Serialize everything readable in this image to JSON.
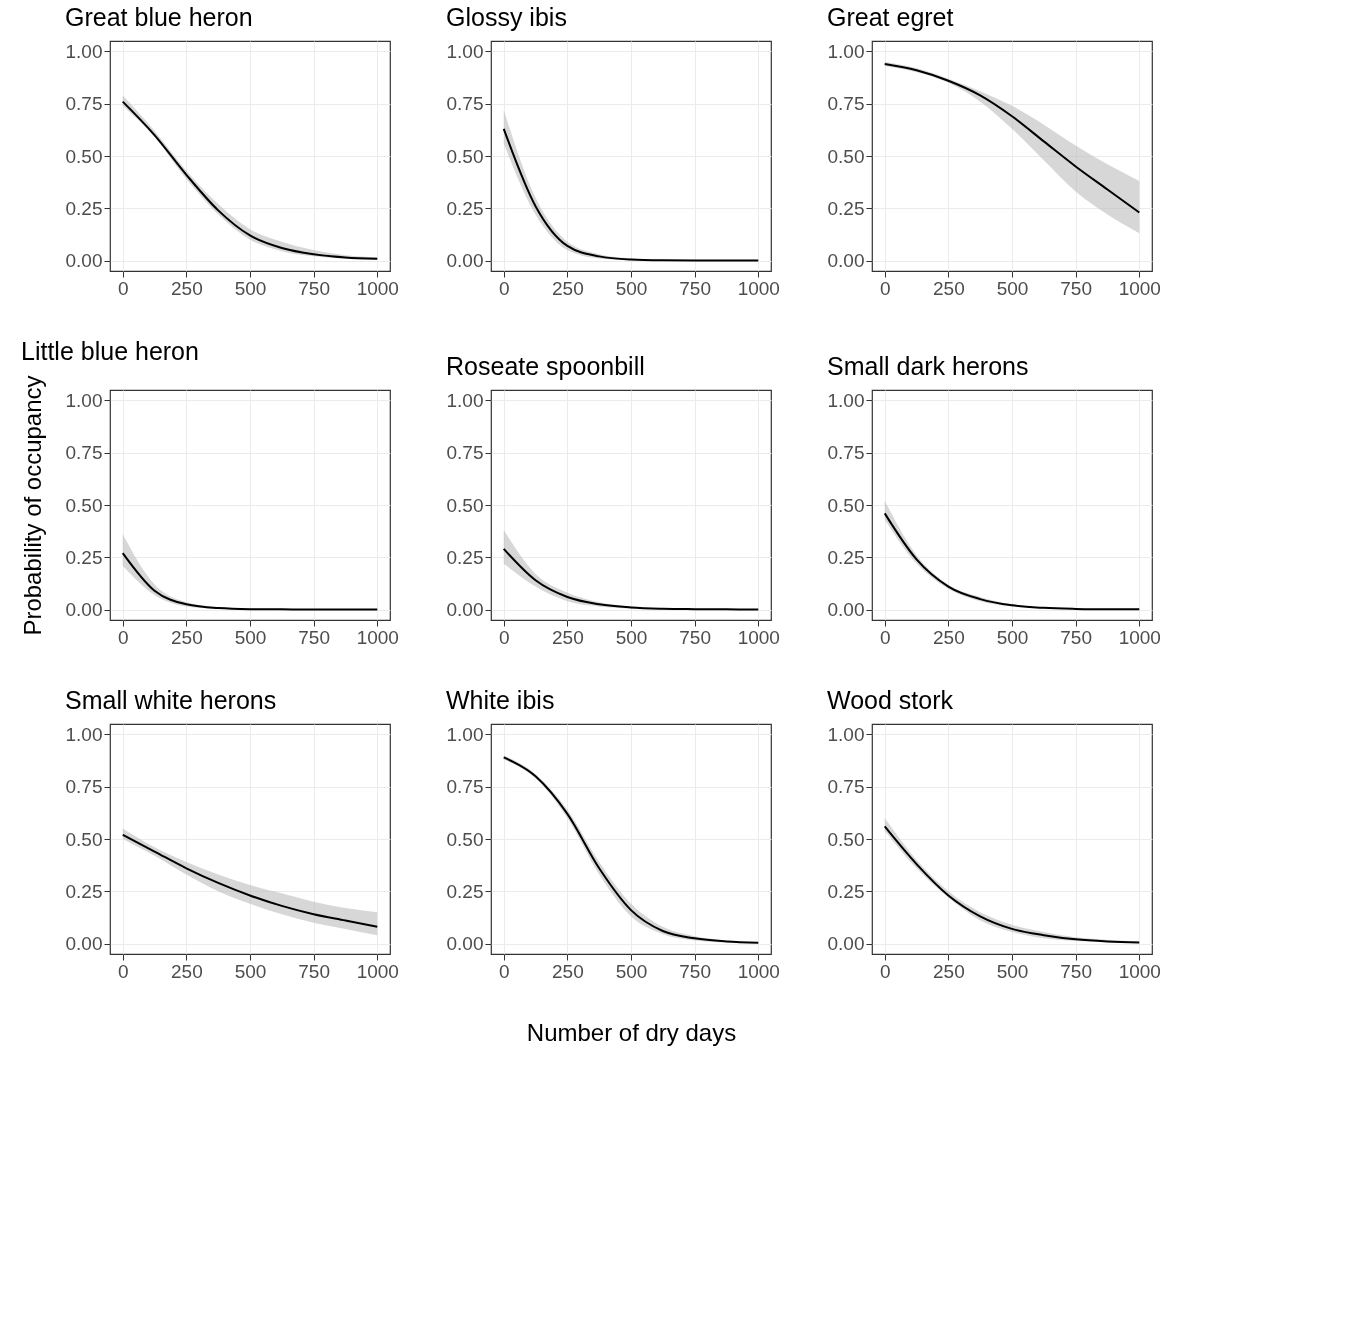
{
  "chart_data": [
    {
      "type": "line",
      "title": "Great blue heron",
      "x": [
        0,
        125,
        250,
        375,
        500,
        625,
        750,
        875,
        1000
      ],
      "xlim": [
        -50,
        1050
      ],
      "xticks": [
        0,
        250,
        500,
        750,
        1000
      ],
      "ylim": [
        -0.05,
        1.05
      ],
      "yticks": [
        {
          "value": 0,
          "label": "0.00"
        },
        {
          "value": 0.25,
          "label": "0.25"
        },
        {
          "value": 0.5,
          "label": "0.50"
        },
        {
          "value": 0.75,
          "label": "0.75"
        },
        {
          "value": 1,
          "label": "1.00"
        }
      ],
      "grid": true,
      "series": [
        {
          "color": "#000000",
          "values": [
            0.76,
            0.6,
            0.41,
            0.24,
            0.12,
            0.06,
            0.03,
            0.015,
            0.008
          ],
          "lower": [
            0.74,
            0.59,
            0.39,
            0.22,
            0.1,
            0.045,
            0.02,
            0.008,
            0.003
          ],
          "upper": [
            0.79,
            0.62,
            0.43,
            0.27,
            0.15,
            0.09,
            0.05,
            0.025,
            0.015
          ]
        }
      ]
    },
    {
      "type": "line",
      "title": "Glossy ibis",
      "x": [
        0,
        125,
        250,
        375,
        500,
        625,
        750,
        875,
        1000
      ],
      "xlim": [
        -50,
        1050
      ],
      "xticks": [
        0,
        250,
        500,
        750,
        1000
      ],
      "ylim": [
        -0.05,
        1.05
      ],
      "yticks": [
        {
          "value": 0,
          "label": "0.00"
        },
        {
          "value": 0.25,
          "label": "0.25"
        },
        {
          "value": 0.5,
          "label": "0.50"
        },
        {
          "value": 0.75,
          "label": "0.75"
        },
        {
          "value": 1,
          "label": "1.00"
        }
      ],
      "grid": true,
      "series": [
        {
          "color": "#000000",
          "values": [
            0.63,
            0.26,
            0.07,
            0.02,
            0.005,
            0.001,
            0,
            0,
            0
          ],
          "lower": [
            0.56,
            0.22,
            0.05,
            0.01,
            0.002,
            0,
            0,
            0,
            0
          ],
          "upper": [
            0.72,
            0.3,
            0.09,
            0.03,
            0.01,
            0.004,
            0.002,
            0.001,
            0.001
          ]
        }
      ]
    },
    {
      "type": "line",
      "title": "Great egret",
      "x": [
        0,
        125,
        250,
        375,
        500,
        625,
        750,
        875,
        1000
      ],
      "xlim": [
        -50,
        1050
      ],
      "xticks": [
        0,
        250,
        500,
        750,
        1000
      ],
      "ylim": [
        -0.05,
        1.05
      ],
      "yticks": [
        {
          "value": 0,
          "label": "0.00"
        },
        {
          "value": 0.25,
          "label": "0.25"
        },
        {
          "value": 0.5,
          "label": "0.50"
        },
        {
          "value": 0.75,
          "label": "0.75"
        },
        {
          "value": 1,
          "label": "1.00"
        }
      ],
      "grid": true,
      "series": [
        {
          "color": "#000000",
          "values": [
            0.94,
            0.91,
            0.86,
            0.79,
            0.69,
            0.57,
            0.45,
            0.34,
            0.23
          ],
          "lower": [
            0.93,
            0.9,
            0.85,
            0.76,
            0.63,
            0.48,
            0.33,
            0.22,
            0.13
          ],
          "upper": [
            0.95,
            0.92,
            0.87,
            0.81,
            0.74,
            0.65,
            0.55,
            0.46,
            0.38
          ]
        }
      ]
    },
    {
      "type": "line",
      "title": "Little blue heron",
      "ylabel": "Probability of occupancy",
      "x": [
        0,
        125,
        250,
        375,
        500,
        625,
        750,
        875,
        1000
      ],
      "xlim": [
        -50,
        1050
      ],
      "xticks": [
        0,
        250,
        500,
        750,
        1000
      ],
      "ylim": [
        -0.05,
        1.05
      ],
      "yticks": [
        {
          "value": 0,
          "label": "0.00"
        },
        {
          "value": 0.25,
          "label": "0.25"
        },
        {
          "value": 0.5,
          "label": "0.50"
        },
        {
          "value": 0.75,
          "label": "0.75"
        },
        {
          "value": 1,
          "label": "1.00"
        }
      ],
      "grid": true,
      "series": [
        {
          "color": "#000000",
          "values": [
            0.27,
            0.09,
            0.025,
            0.007,
            0.002,
            0.001,
            0,
            0,
            0
          ],
          "lower": [
            0.21,
            0.07,
            0.015,
            0.004,
            0.001,
            0,
            0,
            0,
            0
          ],
          "upper": [
            0.36,
            0.12,
            0.035,
            0.012,
            0.005,
            0.003,
            0.002,
            0.002,
            0.002
          ]
        }
      ]
    },
    {
      "type": "line",
      "title": "Roseate spoonbill",
      "x": [
        0,
        125,
        250,
        375,
        500,
        625,
        750,
        875,
        1000
      ],
      "xlim": [
        -50,
        1050
      ],
      "xticks": [
        0,
        250,
        500,
        750,
        1000
      ],
      "ylim": [
        -0.05,
        1.05
      ],
      "yticks": [
        {
          "value": 0,
          "label": "0.00"
        },
        {
          "value": 0.25,
          "label": "0.25"
        },
        {
          "value": 0.5,
          "label": "0.50"
        },
        {
          "value": 0.75,
          "label": "0.75"
        },
        {
          "value": 1,
          "label": "1.00"
        }
      ],
      "grid": true,
      "series": [
        {
          "color": "#000000",
          "values": [
            0.29,
            0.14,
            0.06,
            0.025,
            0.01,
            0.004,
            0.002,
            0.001,
            0
          ],
          "lower": [
            0.22,
            0.11,
            0.04,
            0.015,
            0.005,
            0.002,
            0.001,
            0,
            0
          ],
          "upper": [
            0.38,
            0.17,
            0.08,
            0.035,
            0.015,
            0.007,
            0.004,
            0.002,
            0.001
          ]
        }
      ]
    },
    {
      "type": "line",
      "title": "Small dark herons",
      "x": [
        0,
        125,
        250,
        375,
        500,
        625,
        750,
        875,
        1000
      ],
      "xlim": [
        -50,
        1050
      ],
      "xticks": [
        0,
        250,
        500,
        750,
        1000
      ],
      "ylim": [
        -0.05,
        1.05
      ],
      "yticks": [
        {
          "value": 0,
          "label": "0.00"
        },
        {
          "value": 0.25,
          "label": "0.25"
        },
        {
          "value": 0.5,
          "label": "0.50"
        },
        {
          "value": 0.75,
          "label": "0.75"
        },
        {
          "value": 1,
          "label": "1.00"
        }
      ],
      "grid": true,
      "series": [
        {
          "color": "#000000",
          "values": [
            0.46,
            0.24,
            0.11,
            0.05,
            0.02,
            0.008,
            0.003,
            0.001,
            0.001
          ],
          "lower": [
            0.43,
            0.22,
            0.1,
            0.04,
            0.015,
            0.005,
            0.002,
            0.001,
            0
          ],
          "upper": [
            0.52,
            0.26,
            0.12,
            0.06,
            0.025,
            0.011,
            0.005,
            0.002,
            0.002
          ]
        }
      ]
    },
    {
      "type": "line",
      "title": "Small white herons",
      "x": [
        0,
        125,
        250,
        375,
        500,
        625,
        750,
        875,
        1000
      ],
      "xlim": [
        -50,
        1050
      ],
      "xticks": [
        0,
        250,
        500,
        750,
        1000
      ],
      "ylim": [
        -0.05,
        1.05
      ],
      "yticks": [
        {
          "value": 0,
          "label": "0.00"
        },
        {
          "value": 0.25,
          "label": "0.25"
        },
        {
          "value": 0.5,
          "label": "0.50"
        },
        {
          "value": 0.75,
          "label": "0.75"
        },
        {
          "value": 1,
          "label": "1.00"
        }
      ],
      "grid": true,
      "series": [
        {
          "color": "#000000",
          "values": [
            0.52,
            0.44,
            0.36,
            0.29,
            0.23,
            0.18,
            0.14,
            0.11,
            0.08
          ],
          "lower": [
            0.5,
            0.42,
            0.33,
            0.25,
            0.19,
            0.14,
            0.1,
            0.07,
            0.04
          ],
          "upper": [
            0.55,
            0.46,
            0.39,
            0.33,
            0.28,
            0.24,
            0.2,
            0.17,
            0.15
          ]
        }
      ]
    },
    {
      "type": "line",
      "title": "White ibis",
      "xlabel": "Number of dry days",
      "x": [
        0,
        125,
        250,
        375,
        500,
        625,
        750,
        875,
        1000
      ],
      "xlim": [
        -50,
        1050
      ],
      "xticks": [
        0,
        250,
        500,
        750,
        1000
      ],
      "ylim": [
        -0.05,
        1.05
      ],
      "yticks": [
        {
          "value": 0,
          "label": "0.00"
        },
        {
          "value": 0.25,
          "label": "0.25"
        },
        {
          "value": 0.5,
          "label": "0.50"
        },
        {
          "value": 0.75,
          "label": "0.75"
        },
        {
          "value": 1,
          "label": "1.00"
        }
      ],
      "grid": true,
      "series": [
        {
          "color": "#000000",
          "values": [
            0.89,
            0.8,
            0.62,
            0.36,
            0.16,
            0.06,
            0.025,
            0.01,
            0.004
          ],
          "lower": [
            0.88,
            0.79,
            0.6,
            0.33,
            0.13,
            0.045,
            0.015,
            0.005,
            0.001
          ],
          "upper": [
            0.9,
            0.81,
            0.64,
            0.39,
            0.19,
            0.08,
            0.035,
            0.015,
            0.007
          ]
        }
      ]
    },
    {
      "type": "line",
      "title": "Wood stork",
      "x": [
        0,
        125,
        250,
        375,
        500,
        625,
        750,
        875,
        1000
      ],
      "xlim": [
        -50,
        1050
      ],
      "xticks": [
        0,
        250,
        500,
        750,
        1000
      ],
      "ylim": [
        -0.05,
        1.05
      ],
      "yticks": [
        {
          "value": 0,
          "label": "0.00"
        },
        {
          "value": 0.25,
          "label": "0.25"
        },
        {
          "value": 0.5,
          "label": "0.50"
        },
        {
          "value": 0.75,
          "label": "0.75"
        },
        {
          "value": 1,
          "label": "1.00"
        }
      ],
      "grid": true,
      "series": [
        {
          "color": "#000000",
          "values": [
            0.56,
            0.38,
            0.23,
            0.13,
            0.07,
            0.04,
            0.02,
            0.01,
            0.005
          ],
          "lower": [
            0.54,
            0.36,
            0.22,
            0.11,
            0.055,
            0.025,
            0.012,
            0.006,
            0.002
          ],
          "upper": [
            0.6,
            0.4,
            0.25,
            0.15,
            0.09,
            0.055,
            0.03,
            0.018,
            0.01
          ]
        }
      ]
    }
  ]
}
